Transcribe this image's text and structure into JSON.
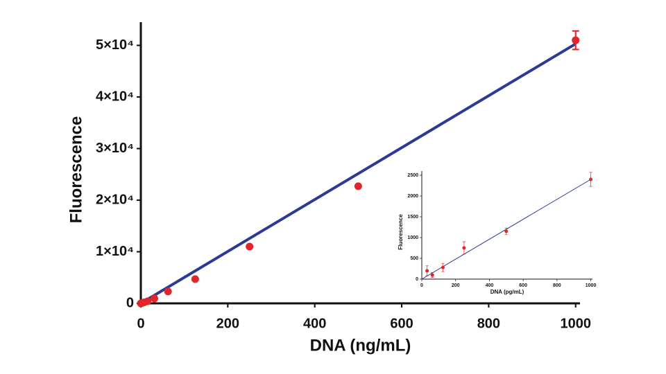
{
  "chart_data": [
    {
      "type": "scatter",
      "x_label": "DNA (ng/mL)",
      "y_label": "Fluorescence",
      "x": [
        0,
        3.9,
        7.8,
        15.6,
        31.25,
        62.5,
        125,
        250,
        500,
        1000
      ],
      "values": [
        0,
        100,
        200,
        400,
        940,
        2300,
        4700,
        11000,
        22700,
        51000
      ],
      "errors": [
        0,
        0,
        0,
        0,
        0,
        0,
        0,
        0,
        0,
        1800
      ],
      "color": "#e0262b",
      "fit": {
        "x": [
          0,
          1000
        ],
        "values": [
          0,
          50300
        ],
        "color": "#2b3a96"
      },
      "xlim": [
        0,
        1010
      ],
      "xticks": [
        0,
        200,
        400,
        600,
        800,
        1000
      ],
      "ylim": [
        0,
        54500
      ],
      "yticks": [
        0,
        {
          "value": 10000,
          "label": "1×10⁴"
        },
        {
          "value": 20000,
          "label": "2×10⁴"
        },
        {
          "value": 30000,
          "label": "3×10⁴"
        },
        {
          "value": 40000,
          "label": "4×10⁴"
        },
        {
          "value": 50000,
          "label": "5×10⁴"
        }
      ]
    },
    {
      "type": "scatter",
      "x_label": "DNA (pg/mL)",
      "y_label": "Fluorescence",
      "x": [
        31.25,
        62.5,
        125,
        250,
        500,
        1000
      ],
      "values": [
        200,
        100,
        280,
        750,
        1150,
        2400
      ],
      "errors": [
        120,
        60,
        100,
        150,
        80,
        170
      ],
      "color": "#e0262b",
      "fit": {
        "x": [
          0,
          1000
        ],
        "values": [
          0,
          2400
        ],
        "color": "#2b3a96"
      },
      "xlim": [
        0,
        1010
      ],
      "xticks": [
        0,
        200,
        400,
        600,
        800,
        1000
      ],
      "ylim": [
        0,
        2600
      ],
      "yticks": [
        0,
        500,
        1000,
        1500,
        2000,
        2500
      ]
    }
  ]
}
